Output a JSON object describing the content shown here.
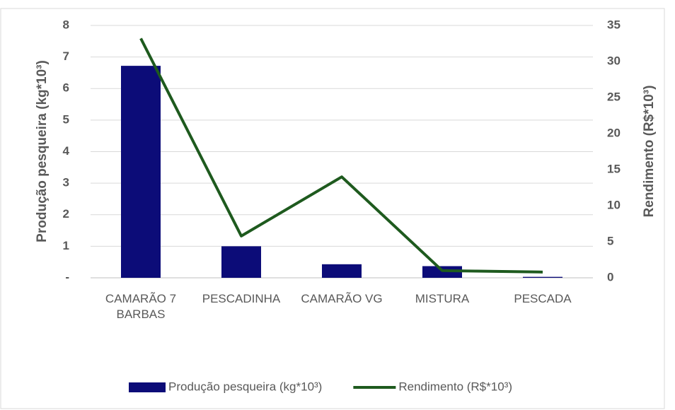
{
  "chart_data": {
    "type": "bar",
    "categories": [
      "CAMARÃO 7 BARBAS",
      "PESCADINHA",
      "CAMARÃO VG",
      "MISTURA",
      "PESCADA"
    ],
    "series": [
      {
        "name": "Produção pesqueira (kg*10³)",
        "type": "bar",
        "color": "#0c0c78",
        "values": [
          6.72,
          1.0,
          0.43,
          0.37,
          0.03
        ]
      },
      {
        "name": "Rendimento (R$*10³)",
        "type": "line",
        "axis": "y2",
        "color": "#1e5a1e",
        "values": [
          33.2,
          5.8,
          14.0,
          1.0,
          0.8
        ]
      }
    ],
    "ylabel": "Produção pesqueira (kg*10³)",
    "y2label": "Rendimento (R$*10³)",
    "ylim": [
      0,
      8
    ],
    "yticks": [
      {
        "value": 0,
        "label": "-"
      },
      1,
      2,
      3,
      4,
      5,
      6,
      7,
      8
    ],
    "y2lim": [
      0,
      35
    ],
    "y2ticks": [
      0,
      5,
      10,
      15,
      20,
      25,
      30,
      35
    ],
    "grid": true,
    "legend": "bottom"
  }
}
